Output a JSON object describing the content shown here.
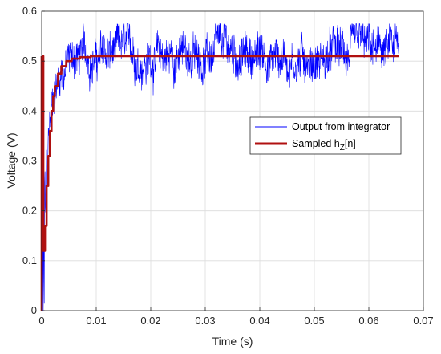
{
  "chart_data": {
    "type": "line",
    "xlabel": "Time (s)",
    "ylabel": "Voltage (V)",
    "xlim": [
      0,
      0.07
    ],
    "ylim": [
      0,
      0.6
    ],
    "xticks": [
      "0",
      "0.01",
      "0.02",
      "0.03",
      "0.04",
      "0.05",
      "0.06",
      "0.07"
    ],
    "yticks": [
      "0",
      "0.1",
      "0.2",
      "0.3",
      "0.4",
      "0.5",
      "0.6"
    ],
    "grid": true,
    "legend_position": "right-middle",
    "series": [
      {
        "name": "Output from integrator",
        "color": "#0000ff",
        "style": "noisy",
        "steady_state": 0.51,
        "time_constant": 0.0012,
        "noise_amplitude": 0.035,
        "x_end": 0.0655
      },
      {
        "name": "Sampled h_Z[n]",
        "color": "#b01010",
        "style": "step",
        "x": [
          0,
          0.0003,
          0.0006,
          0.0009,
          0.0012,
          0.0015,
          0.0018,
          0.0021,
          0.0024,
          0.003,
          0.0036,
          0.0045,
          0.0055,
          0.007,
          0.009,
          0.012,
          0.02,
          0.03,
          0.04,
          0.05,
          0.06,
          0.0655
        ],
        "values": [
          0.51,
          0.12,
          0.17,
          0.25,
          0.31,
          0.36,
          0.4,
          0.43,
          0.45,
          0.475,
          0.49,
          0.5,
          0.505,
          0.508,
          0.51,
          0.51,
          0.51,
          0.51,
          0.51,
          0.51,
          0.51,
          0.51
        ]
      }
    ]
  },
  "legend": {
    "entries": [
      {
        "label": "Output from integrator",
        "color": "#0000ff"
      },
      {
        "label_main": "Sampled h",
        "label_sub": "Z",
        "label_tail": "[n]",
        "color": "#b01010"
      }
    ]
  }
}
